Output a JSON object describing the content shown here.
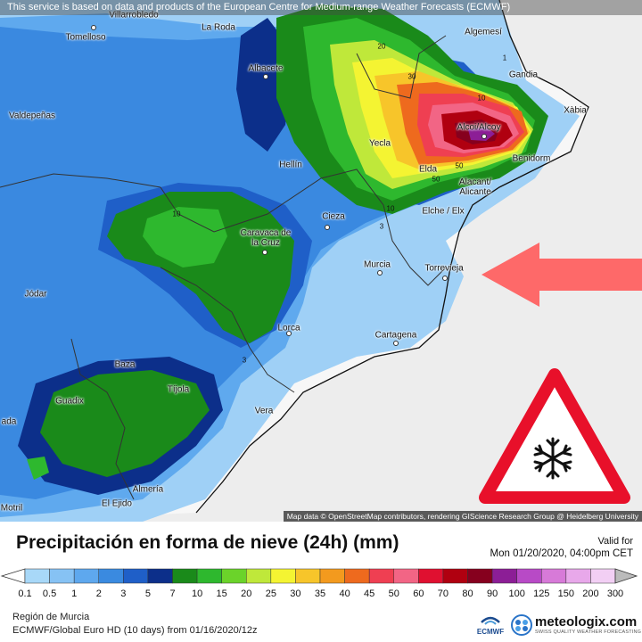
{
  "banner_text": "This service is based on data and products of the European Centre for Medium-range Weather Forecasts (ECMWF)",
  "map_credits": "Map data © OpenStreetMap contributors, rendering GIScience Research Group @ Heidelberg University",
  "cities": {
    "villarrobledo": "Villarrobledo",
    "tomelloso": "Tomelloso",
    "la_roda": "La Roda",
    "albacete": "Albacete",
    "valdepenas": "Valdepeñas",
    "hellin": "Hellín",
    "yecla": "Yecla",
    "cieza": "Cieza",
    "caravaca": "Caravaca de la Cruz",
    "algemesi": "Algemesí",
    "gandia": "Gandia",
    "xabia": "Xàbia",
    "alcoi": "Alcoi/Alcoy",
    "benidorm": "Benidorm",
    "elda": "Elda",
    "alacant": "Alacant/ Alicante",
    "elche": "Elche / Elx",
    "murcia": "Murcia",
    "torrevieja": "Torrevieja",
    "jodar": "Jódar",
    "lorca": "Lorca",
    "cartagena": "Cartagena",
    "baza": "Baza",
    "tijola": "Tíjola",
    "guadix": "Guadix",
    "vera": "Vera",
    "almeria": "Almería",
    "el_ejido": "El Ejido",
    "motril": "Motril",
    "granada_partial": "ada"
  },
  "contour_labels": [
    "20",
    "30",
    "10",
    "50",
    "50",
    "10",
    "3",
    "10",
    "3",
    "1"
  ],
  "arrow_color": "#ff5a5a",
  "warning_icon": "snowflake-warning-icon",
  "legend": {
    "title": "Precipitación en forma de nieve (24h) (mm)",
    "valid_label": "Valid for",
    "valid_value": "Mon 01/20/2020, 04:00pm CET",
    "levels": [
      "0.1",
      "0.5",
      "1",
      "2",
      "3",
      "5",
      "7",
      "10",
      "15",
      "20",
      "25",
      "30",
      "35",
      "40",
      "45",
      "50",
      "60",
      "70",
      "80",
      "90",
      "100",
      "125",
      "150",
      "200",
      "300"
    ],
    "colors": [
      "#a8d8f8",
      "#86c2f4",
      "#5ea8ee",
      "#3a8ae0",
      "#1f5fc8",
      "#0c2f8a",
      "#1a8a1a",
      "#2eb82e",
      "#6bd32a",
      "#bfe83a",
      "#f4f432",
      "#f7c52a",
      "#f39a1e",
      "#ee6a1e",
      "#ef3f52",
      "#f26585",
      "#e01030",
      "#b00010",
      "#86001e",
      "#8c1e96",
      "#b84ac6",
      "#d77ad8",
      "#e8a8ea",
      "#f2cff4"
    ],
    "region": "Región de Murcia",
    "model": "ECMWF/Global Euro HD (10 days) from 01/16/2020/12z"
  },
  "logos": {
    "ecmwf": "ECMWF",
    "meteologix_name": "meteologix.com",
    "meteologix_sub": "SWISS QUALITY WEATHER FORECASTING"
  }
}
